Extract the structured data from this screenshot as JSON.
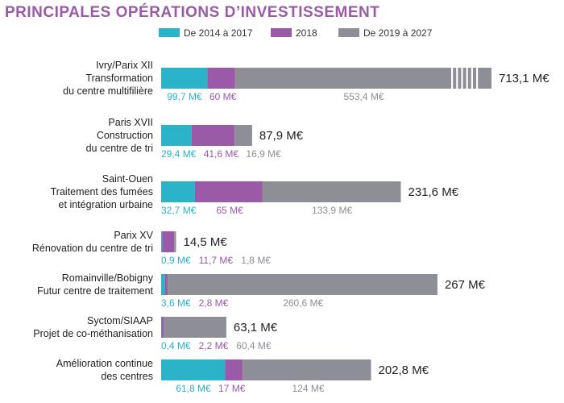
{
  "chart_data": {
    "type": "bar",
    "orientation": "horizontal",
    "stacked": true,
    "title": "PRINCIPALES OPÉRATIONS D’INVESTISSEMENT",
    "legend_position": "top",
    "colors": [
      "#2ab3c9",
      "#9a5aa8",
      "#8e8e96"
    ],
    "series": [
      {
        "name": "De 2014 à 2017",
        "color": "#2ab3c9"
      },
      {
        "name": "2018",
        "color": "#9a5aa8"
      },
      {
        "name": "De 2019 à 2027",
        "color": "#8e8e96"
      }
    ],
    "categories": [
      {
        "label_lines": [
          "Ivry/Parix XII",
          "Transformation",
          "du centre multifilière"
        ],
        "values": [
          99.7,
          60,
          553.4
        ],
        "value_labels": [
          "99,7 M€",
          "60 M€",
          "553,4 M€"
        ],
        "total_label": "713,1 M€",
        "axis_break": true
      },
      {
        "label_lines": [
          "Paris XVII",
          "Construction",
          "du centre de tri"
        ],
        "values": [
          29.4,
          41.6,
          16.9
        ],
        "value_labels": [
          "29,4 M€",
          "41,6 M€",
          "16,9 M€"
        ],
        "total_label": "87,9 M€",
        "axis_break": false
      },
      {
        "label_lines": [
          "Saint-Ouen",
          "Traitement des fumées",
          "et intégration urbaine"
        ],
        "values": [
          32.7,
          65,
          133.9
        ],
        "value_labels": [
          "32,7 M€",
          "65 M€",
          "133,9 M€"
        ],
        "total_label": "231,6 M€",
        "axis_break": false
      },
      {
        "label_lines": [
          "Parix XV",
          "Rénovation du centre de tri"
        ],
        "values": [
          0.9,
          11.7,
          1.8
        ],
        "value_labels": [
          "0,9 M€",
          "11,7 M€",
          "1,8 M€"
        ],
        "total_label": "14,5 M€",
        "axis_break": false
      },
      {
        "label_lines": [
          "Romainville/Bobigny",
          "Futur centre de traitement"
        ],
        "values": [
          3.6,
          2.8,
          260.6
        ],
        "value_labels": [
          "3,6 M€",
          "2,8 M€",
          "260,6 M€"
        ],
        "total_label": "267 M€",
        "axis_break": false
      },
      {
        "label_lines": [
          "Syctom/SIAAP",
          "Projet de co-méthanisation"
        ],
        "values": [
          0.4,
          2.2,
          60.4
        ],
        "value_labels": [
          "0,4 M€",
          "2,2 M€",
          "60,4 M€"
        ],
        "total_label": "63,1 M€",
        "axis_break": false
      },
      {
        "label_lines": [
          "Amélioration continue",
          "des centres"
        ],
        "values": [
          61.8,
          17,
          124
        ],
        "value_labels": [
          "61,8 M€",
          "17 M€",
          "124 M€"
        ],
        "total_label": "202,8 M€",
        "axis_break": false
      }
    ]
  }
}
